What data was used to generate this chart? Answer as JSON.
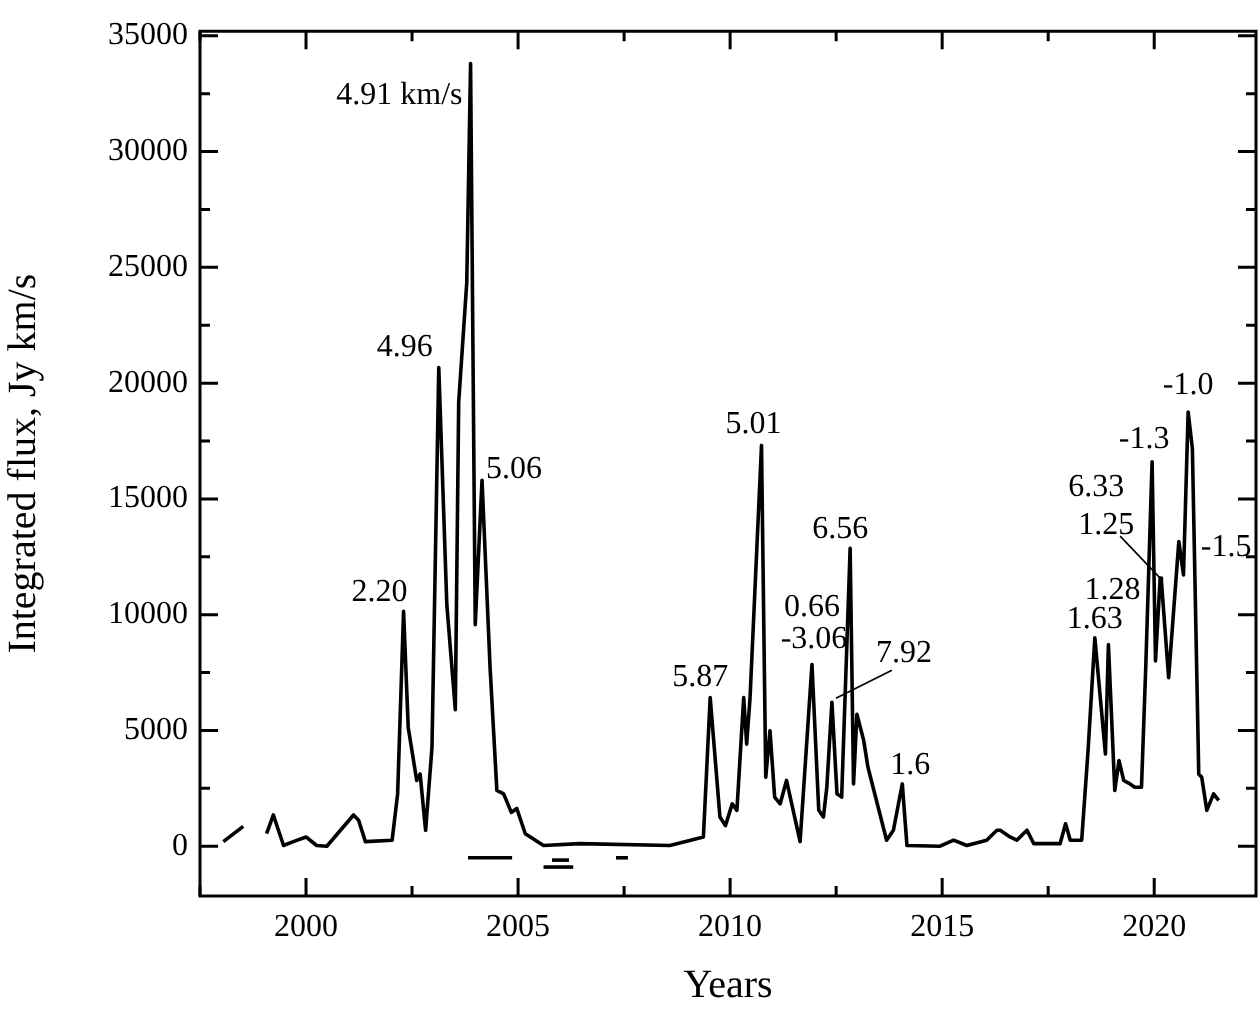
{
  "chart_data": {
    "type": "line",
    "xlabel": "Years",
    "ylabel": "Integrated flux, Jy km/s",
    "xlim": [
      1997.5,
      2022.4
    ],
    "ylim": [
      -2150,
      35200
    ],
    "xticks": [
      {
        "value": 1997.5,
        "label": null
      },
      2000,
      {
        "value": 2002.5,
        "label": null
      },
      2005,
      {
        "value": 2007.5,
        "label": null
      },
      2010,
      {
        "value": 2012.5,
        "label": null
      },
      2015,
      {
        "value": 2017.5,
        "label": null
      },
      2020
    ],
    "yticks": [
      0,
      {
        "value": 2500,
        "label": null
      },
      5000,
      {
        "value": 7500,
        "label": null
      },
      10000,
      {
        "value": 12500,
        "label": null
      },
      15000,
      {
        "value": 17500,
        "label": null
      },
      20000,
      {
        "value": 22500,
        "label": null
      },
      25000,
      {
        "value": 27500,
        "label": null
      },
      30000,
      {
        "value": 32500,
        "label": null
      },
      35000
    ],
    "grid": false,
    "legend": false,
    "marker": "none",
    "line_style": "solid",
    "series": [
      {
        "color": "#000000",
        "x": [
          1998.05,
          1998.52,
          1998.8,
          1999.07,
          1999.23,
          1999.47,
          1999.7,
          2000.0,
          2000.25,
          2000.49,
          2001.12,
          2001.24,
          2001.4,
          2002.03,
          2002.16,
          2002.3,
          2002.41,
          2002.61,
          2002.69,
          2002.82,
          2002.97,
          2003.13,
          2003.32,
          2003.52,
          2003.6,
          2003.79,
          2003.88,
          2003.99,
          2004.15,
          2004.34,
          2004.5,
          2004.66,
          2004.84,
          2004.97,
          2005.17,
          2005.6,
          2006.46,
          2008.58,
          2009.37,
          2009.53,
          2009.76,
          2009.89,
          2010.05,
          2010.16,
          2010.32,
          2010.39,
          2010.47,
          2010.74,
          2010.84,
          2010.94,
          2011.05,
          2011.18,
          2011.33,
          2011.65,
          2011.93,
          2012.09,
          2012.2,
          2012.28,
          2012.4,
          2012.52,
          2012.63,
          2012.83,
          2012.91,
          2012.99,
          2013.15,
          2013.25,
          2013.69,
          2013.85,
          2014.06,
          2014.17,
          2014.95,
          2015.27,
          2015.58,
          2016.05,
          2016.29,
          2016.37,
          2016.6,
          2016.76,
          2017.0,
          2017.16,
          2017.78,
          2017.91,
          2018.02,
          2018.29,
          2018.44,
          2018.6,
          2018.85,
          2018.92,
          2019.07,
          2019.17,
          2019.28,
          2019.43,
          2019.54,
          2019.7,
          2019.8,
          2019.95,
          2020.03,
          2020.14,
          2020.17,
          2020.34,
          2020.58,
          2020.69,
          2020.8,
          2020.9,
          2021.05,
          2021.12,
          2021.24,
          2021.4,
          2021.52
        ],
        "values": [
          200,
          860,
          null,
          540,
          1350,
          30,
          200,
          400,
          30,
          0,
          1350,
          1120,
          200,
          260,
          2260,
          10150,
          5130,
          2840,
          3120,
          690,
          4270,
          20670,
          10430,
          5900,
          19180,
          24340,
          33800,
          9570,
          15800,
          7710,
          2410,
          2260,
          1460,
          1630,
          540,
          30,
          110,
          30,
          400,
          6420,
          1260,
          890,
          1830,
          1550,
          6420,
          4410,
          6420,
          17310,
          2980,
          4990,
          2120,
          1830,
          2840,
          200,
          7850,
          1550,
          1260,
          2550,
          6220,
          2260,
          2120,
          12870,
          2690,
          5700,
          4560,
          3410,
          260,
          690,
          2690,
          30,
          0,
          260,
          30,
          260,
          690,
          690,
          400,
          260,
          690,
          110,
          110,
          970,
          260,
          260,
          4130,
          9000,
          3980,
          8710,
          2410,
          3700,
          2840,
          2690,
          2550,
          2550,
          7710,
          16600,
          8000,
          11580,
          11440,
          7280,
          13160,
          11720,
          18750,
          17170,
          3120,
          2980,
          1550,
          2260,
          1980
        ]
      },
      {
        "color": "#000000",
        "x": [
          2003.82,
          2004.86
        ],
        "values": [
          -500,
          -500
        ]
      },
      {
        "color": "#000000",
        "x": [
          2005.8,
          2006.2
        ],
        "values": [
          -600,
          -600
        ]
      },
      {
        "color": "#000000",
        "x": [
          2005.6,
          2006.3
        ],
        "values": [
          -900,
          -900
        ]
      },
      {
        "color": "#000000",
        "x": [
          2007.31,
          2007.59
        ],
        "values": [
          -500,
          -500
        ]
      }
    ],
    "annotations": [
      {
        "text": "4.91 km/s",
        "x": 2003.88,
        "y": 33800
      },
      {
        "text": "4.96",
        "x": 2003.13,
        "y": 20670
      },
      {
        "text": "2.20",
        "x": 2002.3,
        "y": 10150
      },
      {
        "text": "5.06",
        "x": 2004.15,
        "y": 15800
      },
      {
        "text": "5.87",
        "x": 2009.53,
        "y": 6420
      },
      {
        "text": "5.01",
        "x": 2010.74,
        "y": 17310
      },
      {
        "text": "0.66",
        "x": 2011.93,
        "y": 7850
      },
      {
        "text": "-3.06",
        "x": 2011.93,
        "y": 7850
      },
      {
        "text": "6.56",
        "x": 2012.83,
        "y": 12870
      },
      {
        "text": "7.92",
        "x": 2012.4,
        "y": 6220
      },
      {
        "text": "1.6",
        "x": 2014.06,
        "y": 2690
      },
      {
        "text": "1.63",
        "x": 2018.6,
        "y": 9000
      },
      {
        "text": "1.28",
        "x": 2018.92,
        "y": 8710
      },
      {
        "text": "6.33",
        "x": 2020.14,
        "y": 11580
      },
      {
        "text": "1.25",
        "x": 2020.14,
        "y": 11580
      },
      {
        "text": "-1.3",
        "x": 2019.95,
        "y": 16600
      },
      {
        "text": "-1.0",
        "x": 2020.8,
        "y": 18750
      },
      {
        "text": "-1.5",
        "x": 2020.58,
        "y": 13160
      }
    ]
  }
}
